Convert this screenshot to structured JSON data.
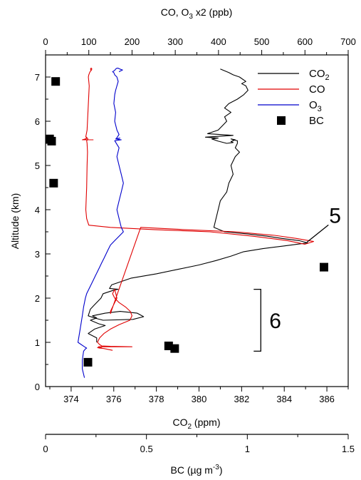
{
  "chart_data": {
    "type": "line",
    "left_axis": {
      "label": "Altitude (km)",
      "range": [
        0,
        7.5
      ],
      "ticks": [
        "0",
        "1",
        "2",
        "3",
        "4",
        "5",
        "6",
        "7"
      ]
    },
    "top_axis": {
      "label_prefix": "CO, O",
      "label_sub": "3",
      "label_suffix": " x2 (ppb)",
      "range": [
        0,
        700
      ],
      "ticks": [
        "0",
        "100",
        "200",
        "300",
        "400",
        "500",
        "600",
        "700"
      ]
    },
    "bottom_axis": {
      "label_prefix": "CO",
      "label_sub": "2",
      "label_suffix": " (ppm)",
      "range": [
        372.8,
        387
      ],
      "ticks": [
        "374",
        "376",
        "378",
        "380",
        "382",
        "384",
        "386"
      ]
    },
    "bc_axis": {
      "label_prefix": "BC (µg m",
      "label_sup": "-3",
      "label_suffix": ")",
      "range": [
        0,
        1.5
      ],
      "ticks": [
        "0",
        "0.5",
        "1",
        "1.5"
      ]
    },
    "legend": {
      "position": "top-right",
      "entries": [
        {
          "key": "co2",
          "main": "CO",
          "sub": "2",
          "color": "#000000",
          "marker": "line"
        },
        {
          "key": "co",
          "main": "CO",
          "sub": "",
          "color": "#e00000",
          "marker": "line"
        },
        {
          "key": "o3",
          "main": "O",
          "sub": "3",
          "color": "#0000cc",
          "marker": "line"
        },
        {
          "key": "bc",
          "main": "BC",
          "sub": "",
          "color": "#000000",
          "marker": "square"
        }
      ]
    },
    "series": [
      {
        "key": "co2",
        "axis": "bottom",
        "color": "#000000",
        "x": [
          375.2,
          375.2,
          374.8,
          375.1,
          375.6,
          375.3,
          374.9,
          375.2,
          375.0,
          375.6,
          376.3,
          377.1,
          377.4,
          376.9,
          375.5,
          375.1,
          374.8,
          374.9,
          375.1,
          375.4,
          375.5,
          376.0,
          376.2,
          375.8,
          375.9,
          376.8,
          378.0,
          379.0,
          380.0,
          380.8,
          381.5,
          382.1,
          383.0,
          384.0,
          384.8,
          385.1,
          384.7,
          383.9,
          383.2,
          382.3,
          381.2,
          380.7,
          380.8,
          380.9,
          381.0,
          381.3,
          381.4,
          381.6,
          381.5,
          381.6,
          381.7,
          381.9,
          381.7,
          381.8,
          381.8,
          381.6,
          381.5,
          381.7,
          381.6,
          381.5,
          381.6,
          381.3,
          380.9,
          380.6,
          380.9,
          380.3,
          381.6,
          380.4,
          380.9,
          381.1,
          381.3,
          381.2,
          381.5,
          381.2,
          381.4,
          381.8,
          382.1,
          382.3,
          382.2,
          382.0,
          382.2,
          381.9,
          381.6,
          381.4,
          381.0
        ],
        "y": [
          1.0,
          1.1,
          1.2,
          1.3,
          1.38,
          1.42,
          1.5,
          1.55,
          1.6,
          1.66,
          1.7,
          1.66,
          1.58,
          1.52,
          1.5,
          1.55,
          1.6,
          1.75,
          1.85,
          2.0,
          2.1,
          2.18,
          2.2,
          2.22,
          2.3,
          2.45,
          2.55,
          2.65,
          2.75,
          2.85,
          2.95,
          3.05,
          3.12,
          3.18,
          3.23,
          3.25,
          3.3,
          3.35,
          3.4,
          3.45,
          3.5,
          3.6,
          3.8,
          4.0,
          4.2,
          4.4,
          4.6,
          4.8,
          5.0,
          5.1,
          5.2,
          5.3,
          5.4,
          5.5,
          5.56,
          5.58,
          5.6,
          5.58,
          5.56,
          5.54,
          5.52,
          5.5,
          5.55,
          5.6,
          5.62,
          5.64,
          5.68,
          5.72,
          5.8,
          5.9,
          6.0,
          6.1,
          6.2,
          6.3,
          6.4,
          6.5,
          6.6,
          6.7,
          6.8,
          6.85,
          6.9,
          7.0,
          7.05,
          7.1,
          7.18
        ]
      },
      {
        "key": "co",
        "axis": "top",
        "color": "#e00000",
        "x": [
          155,
          145,
          135,
          125,
          120,
          130,
          122,
          200,
          150,
          130,
          125,
          120,
          125,
          135,
          150,
          170,
          195,
          200,
          196,
          185,
          170,
          160,
          155,
          160,
          165,
          160,
          155,
          150,
          150,
          220,
          320,
          440,
          530,
          580,
          620,
          600,
          560,
          480,
          380,
          250,
          150,
          100,
          95,
          93,
          95,
          96,
          97,
          96,
          95,
          97,
          98,
          96,
          95,
          94,
          90,
          110,
          85,
          92,
          95,
          93,
          94,
          96,
          97,
          98,
          99,
          100,
          101,
          100,
          99,
          100,
          102,
          103,
          105,
          104,
          105,
          106,
          107,
          106,
          105
        ],
        "y": [
          0.82,
          0.84,
          0.86,
          0.87,
          0.88,
          0.89,
          0.9,
          0.9,
          0.91,
          0.92,
          0.95,
          1.0,
          1.1,
          1.2,
          1.3,
          1.4,
          1.5,
          1.6,
          1.7,
          1.8,
          1.9,
          2.0,
          2.1,
          2.2,
          2.0,
          1.9,
          1.8,
          1.7,
          1.65,
          3.6,
          3.55,
          3.5,
          3.42,
          3.35,
          3.28,
          3.22,
          3.3,
          3.4,
          3.5,
          3.55,
          3.6,
          3.65,
          3.8,
          4.0,
          4.5,
          5.0,
          5.3,
          5.5,
          5.56,
          5.58,
          5.6,
          5.62,
          5.64,
          5.6,
          5.58,
          5.58,
          5.58,
          5.6,
          5.62,
          5.65,
          5.7,
          5.8,
          6.0,
          6.2,
          6.4,
          6.6,
          6.8,
          6.9,
          7.0,
          7.05,
          7.1,
          7.12,
          7.15,
          7.18,
          7.2,
          7.2,
          7.18,
          7.16,
          7.14
        ]
      },
      {
        "key": "o3",
        "axis": "top",
        "color": "#0000cc",
        "x": [
          90,
          85,
          85,
          88,
          92,
          95,
          90,
          75,
          80,
          85,
          88,
          92,
          95,
          100,
          105,
          110,
          115,
          120,
          125,
          130,
          135,
          140,
          145,
          150,
          160,
          170,
          180,
          175,
          170,
          165,
          170,
          175,
          180,
          175,
          170,
          165,
          170,
          160,
          175,
          162,
          172,
          163,
          170,
          165,
          160,
          162,
          158,
          160,
          162,
          165,
          168,
          165,
          160,
          158,
          155,
          160,
          162,
          165,
          168,
          170,
          172,
          175,
          178,
          176,
          174,
          172,
          170
        ],
        "y": [
          0.2,
          0.4,
          0.6,
          0.8,
          0.85,
          0.87,
          0.9,
          1.0,
          1.3,
          1.6,
          1.8,
          2.0,
          2.1,
          2.2,
          2.3,
          2.4,
          2.5,
          2.6,
          2.7,
          2.8,
          2.9,
          3.0,
          3.1,
          3.2,
          3.3,
          3.4,
          3.5,
          3.6,
          3.8,
          4.0,
          4.2,
          4.4,
          4.6,
          4.8,
          5.0,
          5.2,
          5.4,
          5.56,
          5.58,
          5.6,
          5.62,
          5.6,
          5.7,
          5.8,
          6.0,
          6.2,
          6.4,
          6.6,
          6.7,
          6.8,
          6.9,
          7.0,
          7.05,
          7.1,
          7.12,
          7.15,
          7.18,
          7.2,
          7.2,
          7.19,
          7.18,
          7.17,
          7.16,
          7.15,
          7.14,
          7.13,
          7.12
        ]
      }
    ],
    "bc_points": [
      {
        "bc": 0.02,
        "alt": 5.6
      },
      {
        "bc": 0.03,
        "alt": 5.55
      },
      {
        "bc": 0.05,
        "alt": 6.9
      },
      {
        "bc": 0.04,
        "alt": 4.6
      },
      {
        "bc": 0.21,
        "alt": 0.55
      },
      {
        "bc": 0.61,
        "alt": 0.92
      },
      {
        "bc": 0.64,
        "alt": 0.86
      },
      {
        "bc": 1.38,
        "alt": 2.7
      }
    ],
    "annotations": [
      {
        "text": "5",
        "kind": "pointer",
        "target_co": 600,
        "target_alt": 3.22
      },
      {
        "text": "6",
        "kind": "bracket",
        "alt_range": [
          0.8,
          2.2
        ]
      }
    ]
  }
}
